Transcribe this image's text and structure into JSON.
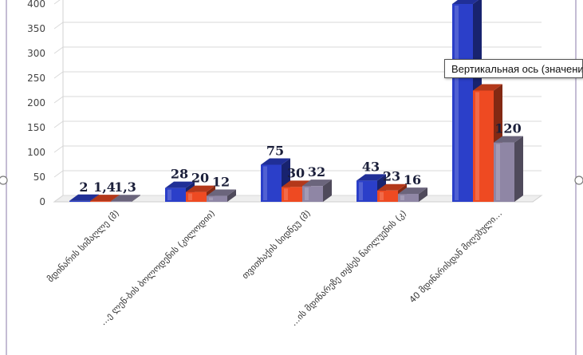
{
  "chart_data": {
    "type": "bar",
    "categories": [
      "მდინარის სიმაღლე (მ)",
      "…ე ლენ-ბის ბოლოდენის (კილოდიი)",
      "თვითხაქის სიდნეუ (მ)",
      "…ის მდინარეზე თყსეს ნაოლუენის (კ)",
      "40 მდინარისდან მიღებული…"
    ],
    "series": [
      {
        "values": [
          2,
          28,
          75,
          43,
          400
        ]
      },
      {
        "values": [
          1.4,
          20,
          30,
          23,
          225
        ]
      },
      {
        "values": [
          1.3,
          12,
          32,
          16,
          120
        ]
      }
    ],
    "data_labels": [
      [
        "2",
        "1,4",
        "1,3"
      ],
      [
        "28",
        "20",
        "12"
      ],
      [
        "75",
        "30",
        "32"
      ],
      [
        "43",
        "23",
        "16"
      ],
      [
        "",
        "",
        "120"
      ]
    ],
    "y_ticks": [
      "0",
      "50",
      "100",
      "150",
      "200",
      "250",
      "300",
      "350",
      "400"
    ],
    "ylim": [
      0,
      400
    ],
    "grid": true,
    "colors": [
      "#2b3fc9",
      "#ee4a22",
      "#8f86a5"
    ]
  },
  "tooltip": {
    "text": "Вертикальная ось (значения)"
  }
}
